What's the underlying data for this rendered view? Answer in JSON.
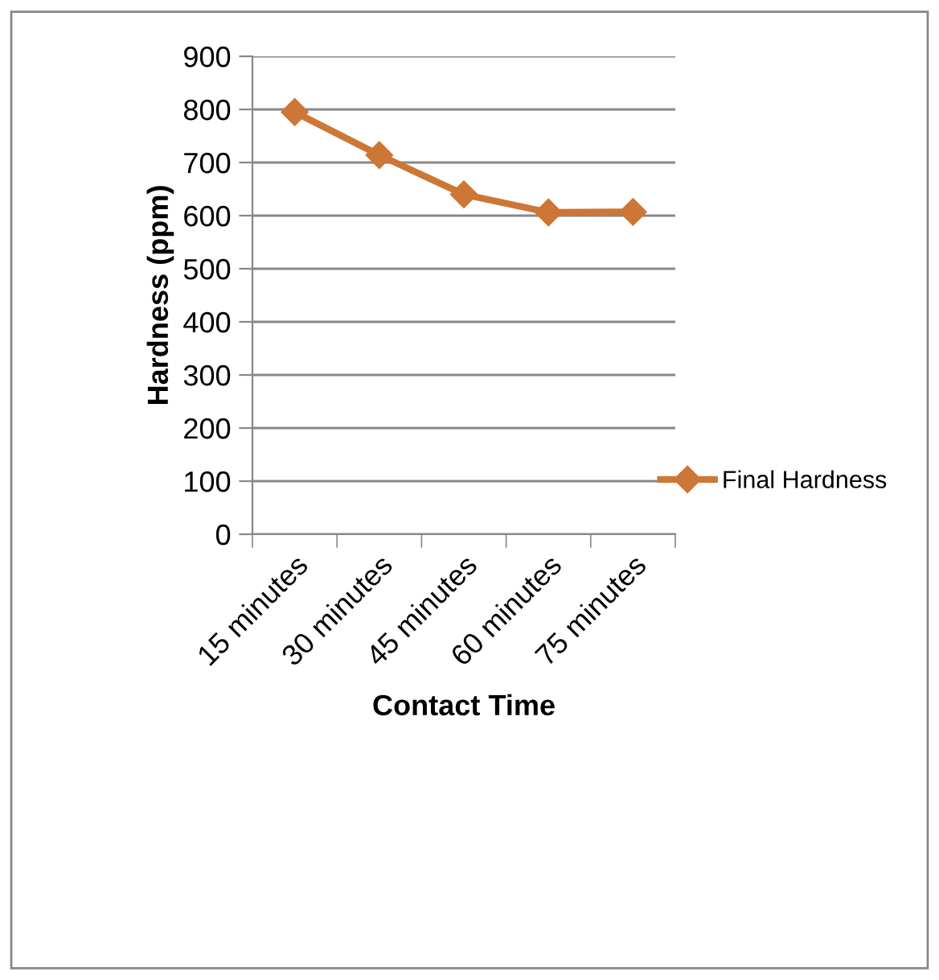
{
  "chart_data": {
    "type": "line",
    "xlabel": "Contact Time",
    "ylabel": "Hardness (ppm)",
    "categories": [
      "15 minutes",
      "30 minutes",
      "45 minutes",
      "60 minutes",
      "75 minutes"
    ],
    "series": [
      {
        "name": "Final Hardness",
        "color": "#cd7636",
        "values": [
          795,
          714,
          640,
          606,
          607
        ]
      }
    ],
    "ylim": [
      0,
      900
    ],
    "yticks": [
      0,
      100,
      200,
      300,
      400,
      500,
      600,
      700,
      800,
      900
    ],
    "grid": "y",
    "legend": "right",
    "marker": "diamond",
    "line_style": "solid"
  }
}
